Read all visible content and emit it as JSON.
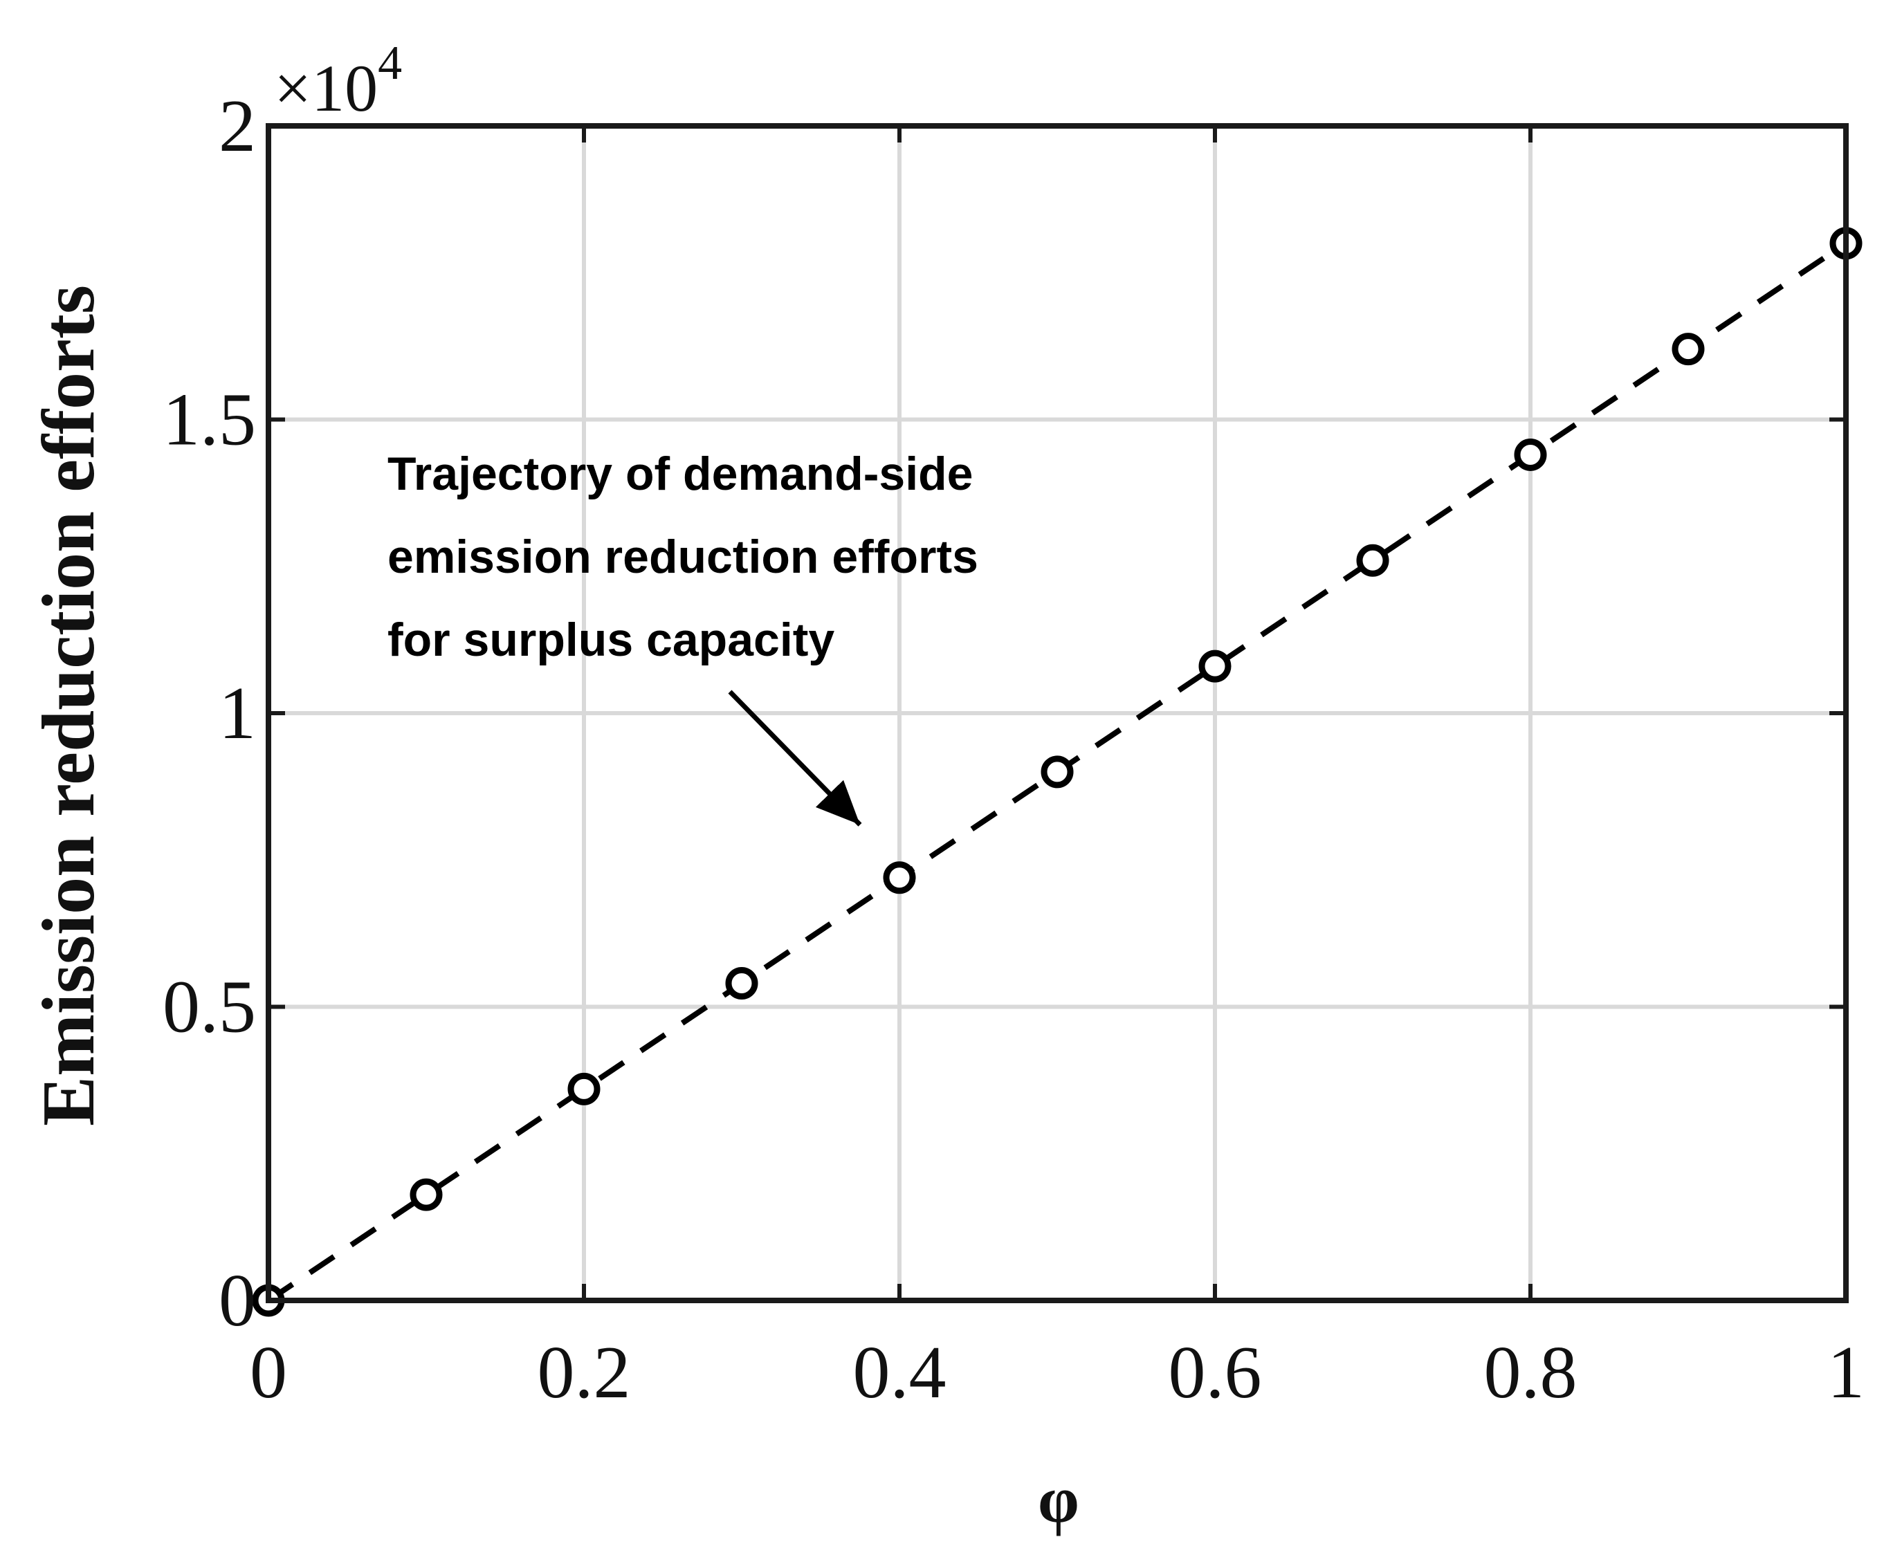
{
  "chart_data": {
    "type": "line",
    "title": "",
    "xlabel": "φ",
    "ylabel": "Emission reduction efforts",
    "xlim": [
      0,
      1
    ],
    "ylim": [
      0,
      20000
    ],
    "y_multiplier_base": "×10",
    "y_multiplier_exponent": "4",
    "grid": true,
    "legend": "none",
    "x_ticks": [
      {
        "value": 0,
        "label": "0"
      },
      {
        "value": 0.2,
        "label": "0.2"
      },
      {
        "value": 0.4,
        "label": "0.4"
      },
      {
        "value": 0.6,
        "label": "0.6"
      },
      {
        "value": 0.8,
        "label": "0.8"
      },
      {
        "value": 1,
        "label": "1"
      }
    ],
    "y_ticks": [
      {
        "value": 0,
        "label": "0"
      },
      {
        "value": 5000,
        "label": "0.5"
      },
      {
        "value": 10000,
        "label": "1"
      },
      {
        "value": 15000,
        "label": "1.5"
      },
      {
        "value": 20000,
        "label": "2"
      }
    ],
    "series": [
      {
        "x": [
          0,
          0.1,
          0.2,
          0.3,
          0.4,
          0.5,
          0.6,
          0.7,
          0.8,
          0.9,
          1.0
        ],
        "y": [
          0,
          1800,
          3600,
          5400,
          7200,
          9000,
          10800,
          12600,
          14400,
          16200,
          18000
        ],
        "line_style": "dashed",
        "marker": "open-circle",
        "color": "#000000"
      }
    ],
    "annotation": {
      "lines": [
        "Trajectory of demand-side",
        "emission reduction efforts",
        "for surplus capacity"
      ],
      "arrow_tip": {
        "x": 0.375,
        "y": 8100
      }
    },
    "colors": {
      "line": "#000000",
      "grid": "#d9d9d9",
      "axes": "#1a1a1a"
    }
  }
}
